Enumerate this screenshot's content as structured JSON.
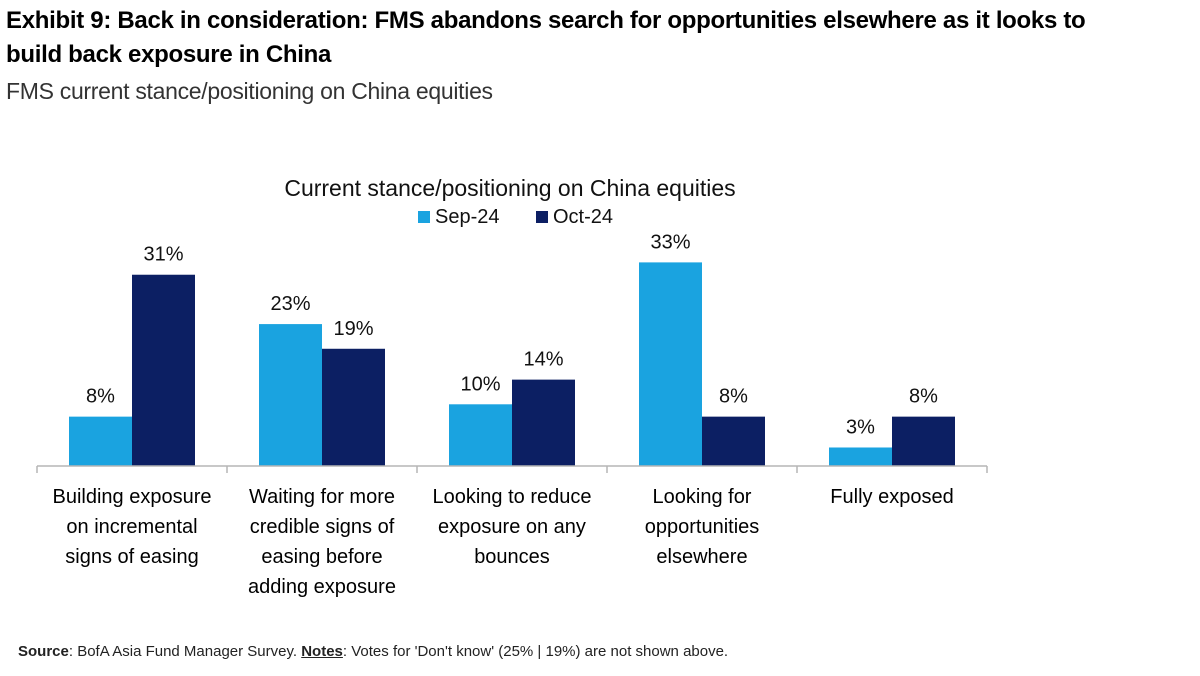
{
  "exhibit": {
    "title": "Exhibit 9: Back in consideration: FMS abandons search for opportunities elsewhere as it looks to build back exposure in China",
    "subtitle": "FMS current stance/positioning on China equities"
  },
  "chart_data": {
    "type": "bar",
    "title": "Current stance/positioning on China equities",
    "xlabel": "",
    "ylabel": "",
    "categories": [
      "Building exposure on incremental signs of easing",
      "Waiting for more credible signs of easing before adding exposure",
      "Looking to reduce exposure on any bounces",
      "Looking for opportunities elsewhere",
      "Fully exposed"
    ],
    "series": [
      {
        "name": "Sep-24",
        "color": "#1aa3e0",
        "values": [
          8,
          23,
          10,
          33,
          3
        ],
        "labels": [
          "8%",
          "23%",
          "10%",
          "33%",
          "3%"
        ]
      },
      {
        "name": "Oct-24",
        "color": "#0c1f63",
        "values": [
          31,
          19,
          14,
          8,
          8
        ],
        "labels": [
          "31%",
          "19%",
          "14%",
          "8%",
          "8%"
        ]
      }
    ],
    "ylim": [
      0,
      35
    ],
    "legend_position": "top-center",
    "grid": false
  },
  "footer": {
    "source_key": "Source",
    "source_text": ": BofA Asia Fund Manager Survey. ",
    "notes_key": "Notes",
    "notes_text": ": Votes for 'Don't know' (25% | 19%) are not shown above."
  }
}
